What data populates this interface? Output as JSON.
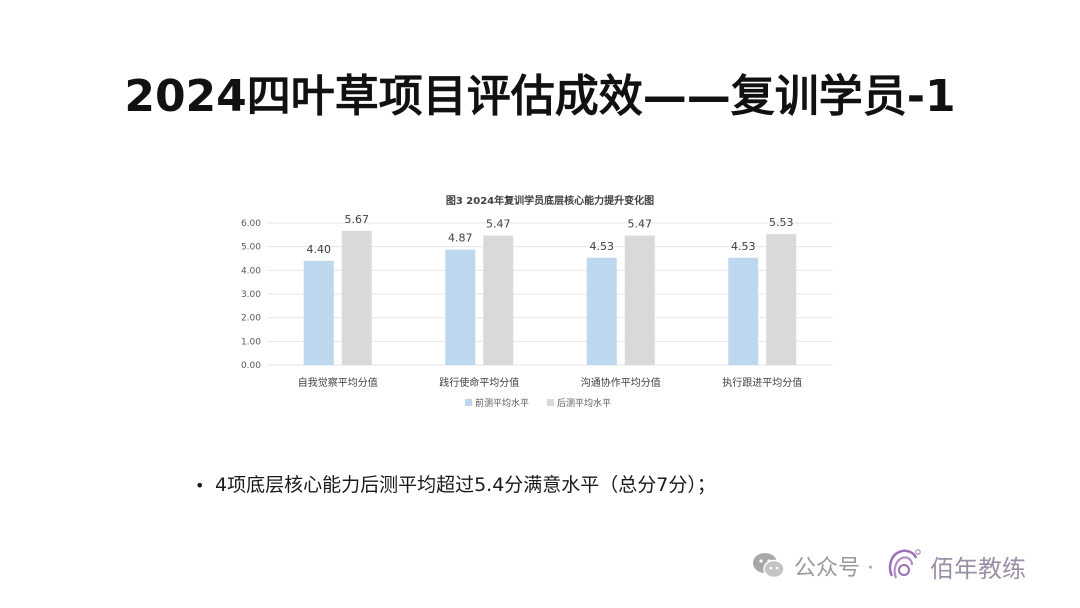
{
  "slide": {
    "title": "2024四叶草项目评估成效——复训学员-1",
    "bullet": "4项底层核心能力后测平均超过5.4分满意水平（总分7分）；"
  },
  "watermark": {
    "account_label": "公众号 ·",
    "brand": "佰年教练"
  },
  "colors": {
    "pre": "#BDD7EE",
    "post": "#D9D9D9",
    "grid": "#E6E6E6"
  },
  "chart_data": {
    "type": "bar",
    "title": "图3 2024年复训学员底层核心能力提升变化图",
    "categories": [
      "自我觉察平均分值",
      "践行使命平均分值",
      "沟通协作平均分值",
      "执行跟进平均分值"
    ],
    "series": [
      {
        "name": "前测平均水平",
        "values": [
          4.4,
          4.87,
          4.53,
          4.53
        ],
        "labels": [
          "4.40",
          "4.87",
          "4.53",
          "4.53"
        ]
      },
      {
        "name": "后测平均水平",
        "values": [
          5.67,
          5.47,
          5.47,
          5.53
        ],
        "labels": [
          "5.67",
          "5.47",
          "5.47",
          "5.53"
        ]
      }
    ],
    "yticks": [
      "0.00",
      "1.00",
      "2.00",
      "3.00",
      "4.00",
      "5.00",
      "6.00"
    ],
    "ylim": [
      0,
      6
    ],
    "grid": true,
    "legend": "bottom"
  }
}
